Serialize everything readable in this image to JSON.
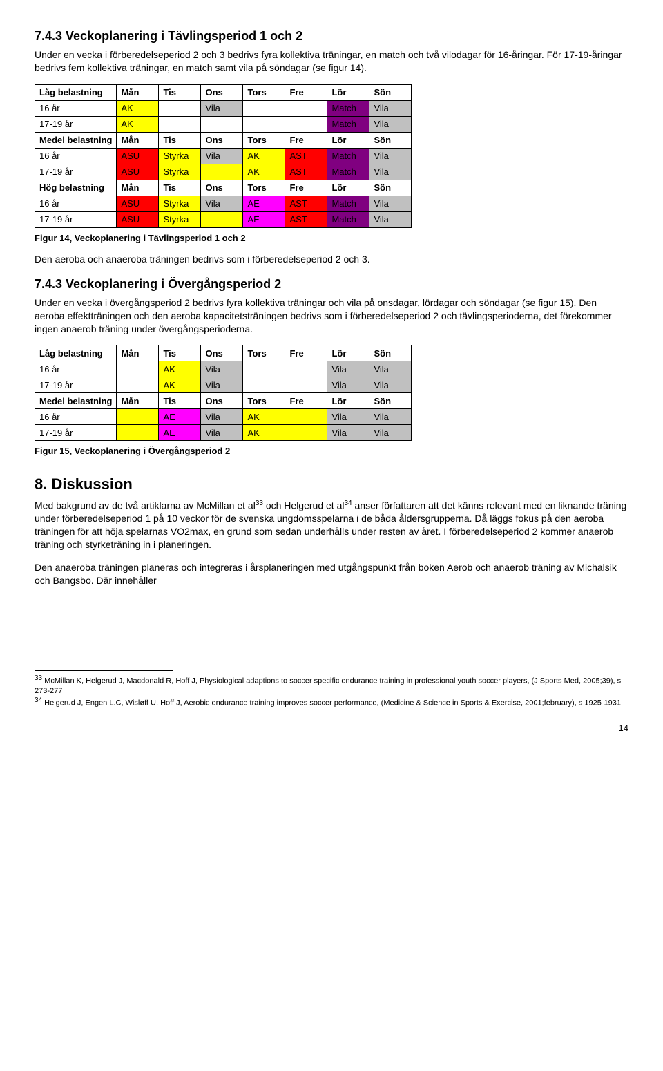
{
  "colors": {
    "yellow": "#ffff00",
    "purple": "#800080",
    "gray": "#c0c0c0",
    "red": "#ff0000",
    "magenta": "#ff00ff",
    "white": "#ffffff"
  },
  "section1": {
    "heading": "7.4.3 Veckoplanering i Tävlingsperiod 1 och 2",
    "para": "Under en vecka i förberedelseperiod 2 och 3 bedrivs fyra kollektiva träningar, en match och två vilodagar för 16-åringar. För 17-19-åringar bedrivs fem kollektiva träningar, en match samt vila på söndagar (se figur 14).",
    "caption": "Figur 14, Veckoplanering i Tävlingsperiod 1 och 2",
    "after": "Den aeroba och anaeroba träningen bedrivs som i förberedelseperiod 2 och 3.",
    "day_headers": [
      "Mån",
      "Tis",
      "Ons",
      "Tors",
      "Fre",
      "Lör",
      "Sön"
    ],
    "groups": [
      {
        "label": "Låg belastning",
        "rows": [
          {
            "label": "16 år",
            "cells": [
              {
                "t": "AK",
                "c": "yellow"
              },
              {
                "t": "",
                "c": "white"
              },
              {
                "t": "Vila",
                "c": "gray"
              },
              {
                "t": "",
                "c": "white"
              },
              {
                "t": "",
                "c": "white"
              },
              {
                "t": "Match",
                "c": "purple"
              },
              {
                "t": "Vila",
                "c": "gray"
              }
            ]
          },
          {
            "label": "17-19 år",
            "cells": [
              {
                "t": "AK",
                "c": "yellow"
              },
              {
                "t": "",
                "c": "white"
              },
              {
                "t": "",
                "c": "white"
              },
              {
                "t": "",
                "c": "white"
              },
              {
                "t": "",
                "c": "white"
              },
              {
                "t": "Match",
                "c": "purple"
              },
              {
                "t": "Vila",
                "c": "gray"
              }
            ]
          }
        ]
      },
      {
        "label": "Medel belastning",
        "rows": [
          {
            "label": "16 år",
            "cells": [
              {
                "t": "ASU",
                "c": "red"
              },
              {
                "t": "Styrka",
                "c": "yellow"
              },
              {
                "t": "Vila",
                "c": "gray"
              },
              {
                "t": "AK",
                "c": "yellow"
              },
              {
                "t": "AST",
                "c": "red"
              },
              {
                "t": "Match",
                "c": "purple"
              },
              {
                "t": "Vila",
                "c": "gray"
              }
            ]
          },
          {
            "label": "17-19 år",
            "cells": [
              {
                "t": "ASU",
                "c": "red"
              },
              {
                "t": "Styrka",
                "c": "yellow"
              },
              {
                "t": "",
                "c": "yellow"
              },
              {
                "t": "AK",
                "c": "yellow"
              },
              {
                "t": "AST",
                "c": "red"
              },
              {
                "t": "Match",
                "c": "purple"
              },
              {
                "t": "Vila",
                "c": "gray"
              }
            ]
          }
        ]
      },
      {
        "label": "Hög belastning",
        "rows": [
          {
            "label": "16 år",
            "cells": [
              {
                "t": "ASU",
                "c": "red"
              },
              {
                "t": "Styrka",
                "c": "yellow"
              },
              {
                "t": "Vila",
                "c": "gray"
              },
              {
                "t": "AE",
                "c": "magenta"
              },
              {
                "t": "AST",
                "c": "red"
              },
              {
                "t": "Match",
                "c": "purple"
              },
              {
                "t": "Vila",
                "c": "gray"
              }
            ]
          },
          {
            "label": "17-19 år",
            "cells": [
              {
                "t": "ASU",
                "c": "red"
              },
              {
                "t": "Styrka",
                "c": "yellow"
              },
              {
                "t": "",
                "c": "yellow"
              },
              {
                "t": "AE",
                "c": "magenta"
              },
              {
                "t": "AST",
                "c": "red"
              },
              {
                "t": "Match",
                "c": "purple"
              },
              {
                "t": "Vila",
                "c": "gray"
              }
            ]
          }
        ]
      }
    ]
  },
  "section2": {
    "heading": "7.4.3 Veckoplanering i Övergångsperiod 2",
    "para": "Under en vecka i övergångsperiod 2 bedrivs fyra kollektiva träningar och vila på onsdagar, lördagar och söndagar (se figur 15). Den aeroba effektträningen och den aeroba kapacitetsträningen bedrivs som i förberedelseperiod 2 och tävlingsperioderna, det förekommer ingen anaerob träning under övergångsperioderna.",
    "caption": "Figur 15, Veckoplanering i Övergångsperiod 2",
    "day_headers": [
      "Mån",
      "Tis",
      "Ons",
      "Tors",
      "Fre",
      "Lör",
      "Sön"
    ],
    "groups": [
      {
        "label": "Låg belastning",
        "rows": [
          {
            "label": "16 år",
            "cells": [
              {
                "t": "",
                "c": "white"
              },
              {
                "t": "AK",
                "c": "yellow"
              },
              {
                "t": "Vila",
                "c": "gray"
              },
              {
                "t": "",
                "c": "white"
              },
              {
                "t": "",
                "c": "white"
              },
              {
                "t": "Vila",
                "c": "gray"
              },
              {
                "t": "Vila",
                "c": "gray"
              }
            ]
          },
          {
            "label": "17-19 år",
            "cells": [
              {
                "t": "",
                "c": "white"
              },
              {
                "t": "AK",
                "c": "yellow"
              },
              {
                "t": "Vila",
                "c": "gray"
              },
              {
                "t": "",
                "c": "white"
              },
              {
                "t": "",
                "c": "white"
              },
              {
                "t": "Vila",
                "c": "gray"
              },
              {
                "t": "Vila",
                "c": "gray"
              }
            ]
          }
        ]
      },
      {
        "label": "Medel belastning",
        "rows": [
          {
            "label": "16 år",
            "cells": [
              {
                "t": "",
                "c": "yellow"
              },
              {
                "t": "AE",
                "c": "magenta"
              },
              {
                "t": "Vila",
                "c": "gray"
              },
              {
                "t": "AK",
                "c": "yellow"
              },
              {
                "t": "",
                "c": "yellow"
              },
              {
                "t": "Vila",
                "c": "gray"
              },
              {
                "t": "Vila",
                "c": "gray"
              }
            ]
          },
          {
            "label": "17-19 år",
            "cells": [
              {
                "t": "",
                "c": "yellow"
              },
              {
                "t": "AE",
                "c": "magenta"
              },
              {
                "t": "Vila",
                "c": "gray"
              },
              {
                "t": "AK",
                "c": "yellow"
              },
              {
                "t": "",
                "c": "yellow"
              },
              {
                "t": "Vila",
                "c": "gray"
              },
              {
                "t": "Vila",
                "c": "gray"
              }
            ]
          }
        ]
      }
    ]
  },
  "section3": {
    "heading": "8. Diskussion",
    "para1_pre": "Med bakgrund av de två artiklarna av McMillan et al",
    "ref33": "33",
    "para1_mid": " och Helgerud et al",
    "ref34": "34",
    "para1_post": " anser författaren att det känns relevant med en liknande träning under förberedelseperiod 1 på 10 veckor för de svenska ungdomsspelarna i de båda åldersgrupperna. Då läggs fokus på den aeroba träningen för att höja spelarnas VO2max, en grund som sedan underhålls under resten av året. I förberedelseperiod 2 kommer anaerob träning och styrketräning in i planeringen.",
    "para2": "Den anaeroba träningen planeras och integreras i årsplaneringen med utgångspunkt från boken Aerob och anaerob träning av Michalsik och Bangsbo. Där innehåller"
  },
  "footnotes": {
    "n33": "33",
    "t33": " McMillan K, Helgerud J, Macdonald R, Hoff J, Physiological adaptions to soccer specific endurance training in professional youth soccer players, (J Sports Med, 2005;39), s 273-277",
    "n34": "34",
    "t34": " Helgerud J, Engen L.C, Wisløff U, Hoff J, Aerobic endurance training improves soccer performance, (Medicine & Science in Sports & Exercise, 2001;february), s 1925-1931"
  },
  "pagenum": "14"
}
